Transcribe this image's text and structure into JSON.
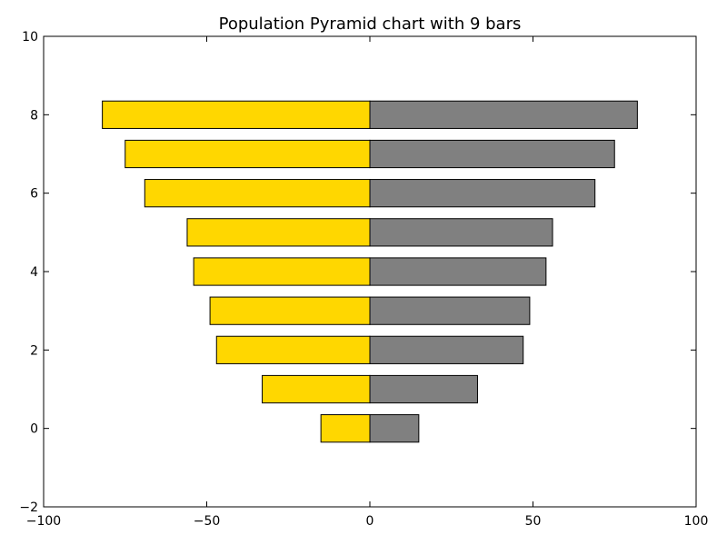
{
  "chart_data": {
    "type": "bar",
    "orientation": "horizontal",
    "title": "Population Pyramid chart with 9 bars",
    "xlabel": "",
    "ylabel": "",
    "y": [
      0,
      1,
      2,
      3,
      4,
      5,
      6,
      7,
      8
    ],
    "series": [
      {
        "color": "#FFD700",
        "values": [
          -15,
          -33,
          -47,
          -49,
          -54,
          -56,
          -69,
          -75,
          -82
        ]
      },
      {
        "color": "#808080",
        "values": [
          15,
          33,
          47,
          49,
          54,
          56,
          69,
          75,
          82
        ]
      }
    ],
    "xlim": [
      -100,
      100
    ],
    "ylim": [
      -2,
      10
    ],
    "xticks": [
      -100,
      -50,
      0,
      50,
      100
    ],
    "yticks": [
      -2,
      0,
      2,
      4,
      6,
      8,
      10
    ],
    "xtick_labels": [
      "−100",
      "−50",
      "0",
      "50",
      "100"
    ],
    "ytick_labels": [
      "−2",
      "0",
      "2",
      "4",
      "6",
      "8",
      "10"
    ],
    "bar_height": 0.7,
    "grid": false,
    "legend": false
  }
}
